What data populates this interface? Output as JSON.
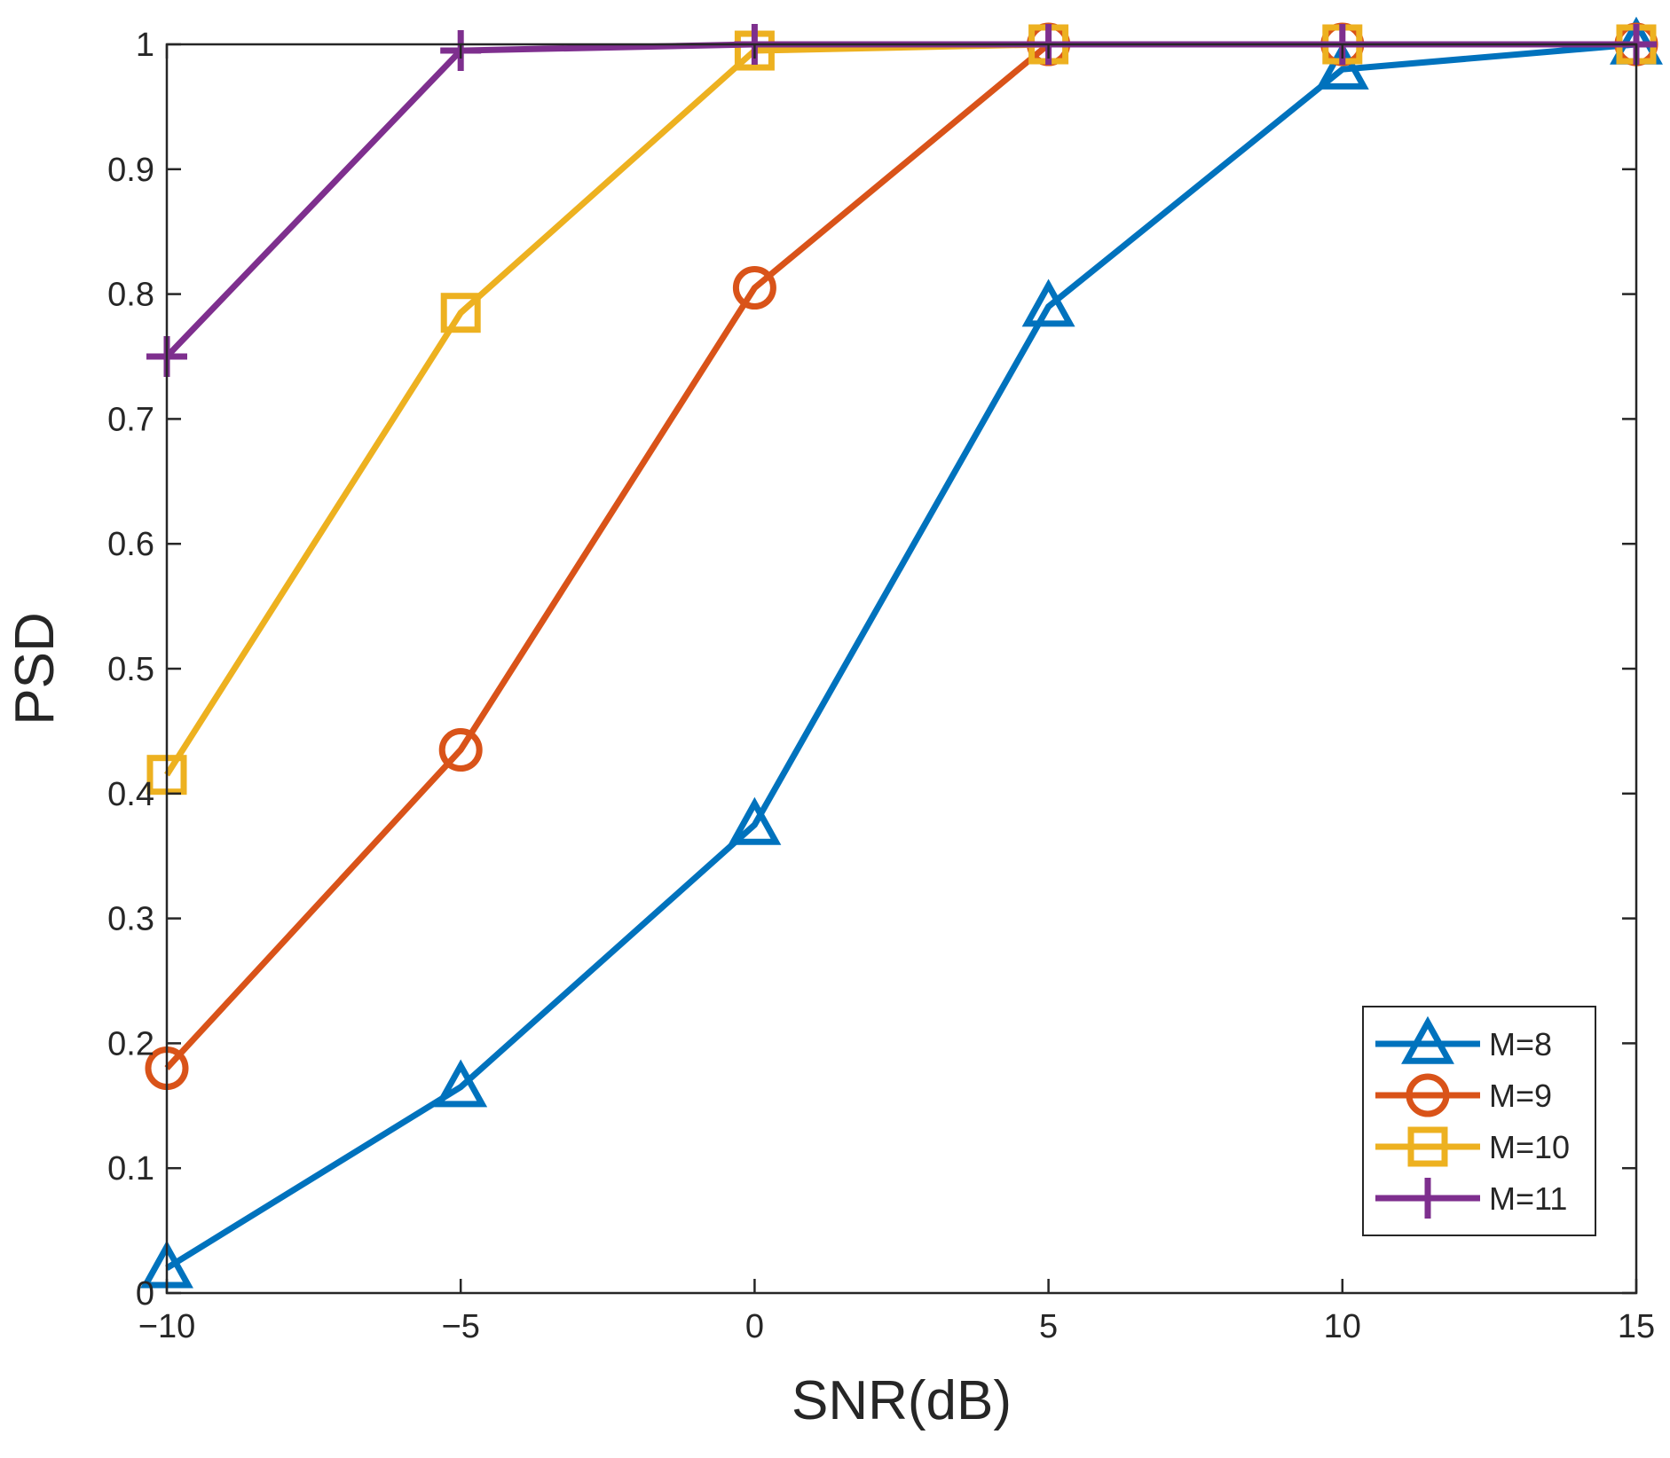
{
  "chart_data": {
    "type": "line",
    "title": "",
    "xlabel": "SNR(dB)",
    "ylabel": "PSD",
    "xlim": [
      -10,
      15
    ],
    "ylim": [
      0,
      1
    ],
    "x": [
      -10,
      -5,
      0,
      5,
      10,
      15
    ],
    "xticks": [
      -10,
      -5,
      0,
      5,
      10,
      15
    ],
    "xtick_labels": [
      "−10",
      "−5",
      "0",
      "5",
      "10",
      "15"
    ],
    "yticks": [
      0,
      0.1,
      0.2,
      0.3,
      0.4,
      0.5,
      0.6,
      0.7,
      0.8,
      0.9,
      1
    ],
    "ytick_labels": [
      "0",
      "0.1",
      "0.2",
      "0.3",
      "0.4",
      "0.5",
      "0.6",
      "0.7",
      "0.8",
      "0.9",
      "1"
    ],
    "grid": false,
    "legend_position": "bottom-right",
    "series": [
      {
        "name": "M=8",
        "marker": "triangle",
        "color": "#0072BD",
        "values": [
          0.02,
          0.165,
          0.375,
          0.79,
          0.98,
          1.0
        ]
      },
      {
        "name": "M=9",
        "marker": "circle",
        "color": "#D95319",
        "values": [
          0.18,
          0.435,
          0.805,
          1.0,
          1.0,
          1.0
        ]
      },
      {
        "name": "M=10",
        "marker": "square",
        "color": "#EDB120",
        "values": [
          0.415,
          0.785,
          0.995,
          1.0,
          1.0,
          1.0
        ]
      },
      {
        "name": "M=11",
        "marker": "plus",
        "color": "#7E2F8E",
        "values": [
          0.75,
          0.995,
          1.0,
          1.0,
          1.0,
          1.0
        ]
      }
    ]
  }
}
